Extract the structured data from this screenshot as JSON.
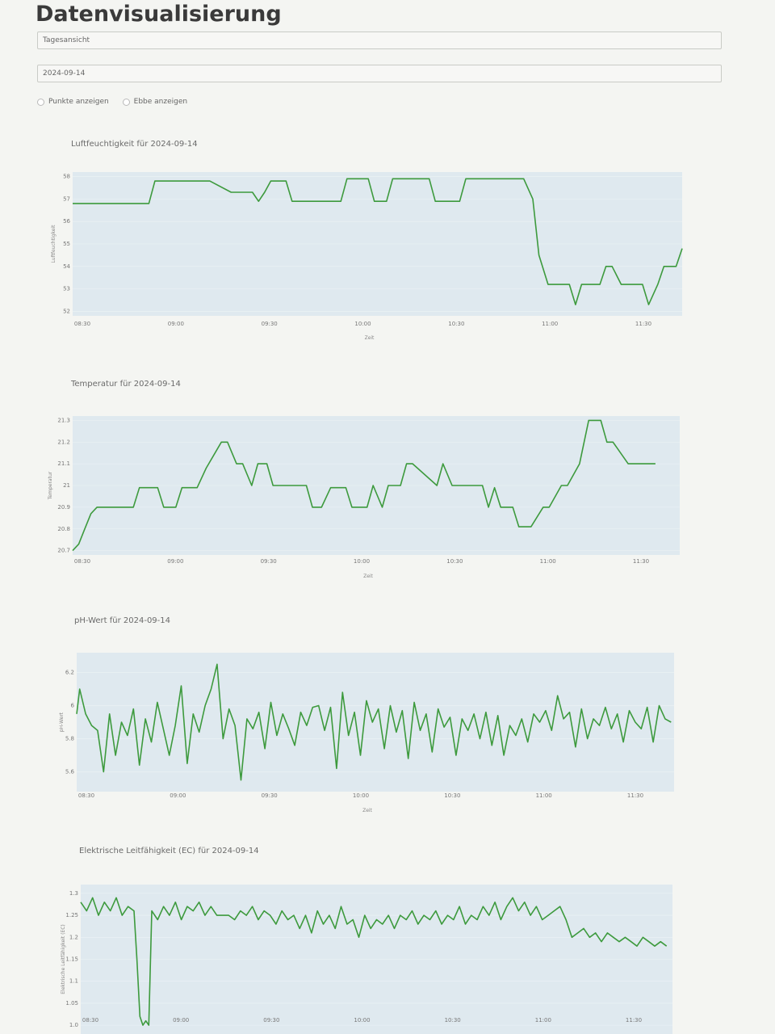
{
  "page": {
    "title": "Datenvisualisierung",
    "view_select": "Tagesansicht",
    "date_select": "2024-09-14",
    "checkbox_points": "Punkte anzeigen",
    "checkbox_ebb": "Ebbe anzeigen"
  },
  "colors": {
    "line": "#3d9a3d",
    "plot_bg": "#dfe9ef",
    "page_bg": "#f4f5f2"
  },
  "chart_data": [
    {
      "type": "line",
      "title": "Luftfeuchtigkeit für 2024-09-14",
      "xlabel": "Zeit",
      "ylabel": "Luftfeuchtigkeit",
      "x_ticks": [
        "08:30",
        "09:00",
        "09:30",
        "10:00",
        "10:30",
        "11:00",
        "11:30"
      ],
      "y_ticks": [
        "52",
        "53",
        "54",
        "55",
        "56",
        "57",
        "58"
      ],
      "xlim": [
        0,
        200
      ],
      "ylim": [
        51.8,
        58.2
      ],
      "x": [
        0,
        25,
        27,
        45,
        52,
        54,
        59,
        61,
        63,
        65,
        70,
        72,
        88,
        90,
        97,
        99,
        103,
        105,
        117,
        119,
        127,
        129,
        148,
        151,
        153,
        156,
        163,
        165,
        167,
        173,
        175,
        177,
        180,
        187,
        189,
        192,
        194,
        198,
        200
      ],
      "y": [
        56.8,
        56.8,
        57.8,
        57.8,
        57.3,
        57.3,
        57.3,
        56.9,
        57.3,
        57.8,
        57.8,
        56.9,
        56.9,
        57.9,
        57.9,
        56.9,
        56.9,
        57.9,
        57.9,
        56.9,
        56.9,
        57.9,
        57.9,
        57.0,
        54.5,
        53.2,
        53.2,
        52.3,
        53.2,
        53.2,
        54.0,
        54.0,
        53.2,
        53.2,
        52.3,
        53.2,
        54.0,
        54.0,
        54.8
      ]
    },
    {
      "type": "line",
      "title": "Temperatur für 2024-09-14",
      "xlabel": "Zeit",
      "ylabel": "Temperatur",
      "x_ticks": [
        "08:30",
        "09:00",
        "09:30",
        "10:00",
        "10:30",
        "11:00",
        "11:30"
      ],
      "y_ticks": [
        "20.7",
        "20.8",
        "20.9",
        "21",
        "21.1",
        "21.2",
        "21.3"
      ],
      "xlim": [
        0,
        200
      ],
      "ylim": [
        20.68,
        21.32
      ],
      "x": [
        0,
        2,
        4,
        6,
        8,
        20,
        22,
        28,
        30,
        34,
        36,
        41,
        44,
        49,
        51,
        54,
        56,
        59,
        61,
        64,
        66,
        77,
        79,
        82,
        85,
        90,
        92,
        97,
        99,
        102,
        104,
        108,
        110,
        112,
        120,
        122,
        125,
        129,
        135,
        137,
        139,
        141,
        145,
        147,
        151,
        155,
        157,
        161,
        163,
        167,
        170,
        174,
        176,
        178,
        183,
        185,
        187,
        190,
        192
      ],
      "y": [
        20.7,
        20.73,
        20.8,
        20.87,
        20.9,
        20.9,
        20.99,
        20.99,
        20.9,
        20.9,
        20.99,
        20.99,
        21.08,
        21.2,
        21.2,
        21.1,
        21.1,
        21.0,
        21.1,
        21.1,
        21.0,
        21.0,
        20.9,
        20.9,
        20.99,
        20.99,
        20.9,
        20.9,
        21.0,
        20.9,
        21.0,
        21.0,
        21.1,
        21.1,
        21.0,
        21.1,
        21.0,
        21.0,
        21.0,
        20.9,
        20.99,
        20.9,
        20.9,
        20.81,
        20.81,
        20.9,
        20.9,
        21.0,
        21.0,
        21.1,
        21.3,
        21.3,
        21.2,
        21.2,
        21.1,
        21.1,
        21.1,
        21.1,
        21.1
      ]
    },
    {
      "type": "line",
      "title": "pH-Wert für 2024-09-14",
      "xlabel": "Zeit",
      "ylabel": "pH-Wert",
      "x_ticks": [
        "08:30",
        "09:00",
        "09:30",
        "10:00",
        "10:30",
        "11:00",
        "11:30"
      ],
      "y_ticks": [
        "5.6",
        "5.8",
        "6",
        "6.2"
      ],
      "xlim": [
        0,
        200
      ],
      "ylim": [
        5.48,
        6.32
      ],
      "x": [
        0,
        1,
        3,
        5,
        7,
        9,
        11,
        13,
        15,
        17,
        19,
        21,
        23,
        25,
        27,
        29,
        31,
        33,
        35,
        37,
        39,
        41,
        43,
        45,
        47,
        49,
        51,
        53,
        55,
        57,
        59,
        61,
        63,
        65,
        67,
        69,
        71,
        73,
        75,
        77,
        79,
        81,
        83,
        85,
        87,
        89,
        91,
        93,
        95,
        97,
        99,
        101,
        103,
        105,
        107,
        109,
        111,
        113,
        115,
        117,
        119,
        121,
        123,
        125,
        127,
        129,
        131,
        133,
        135,
        137,
        139,
        141,
        143,
        145,
        147,
        149,
        151,
        153,
        155,
        157,
        159,
        161,
        163,
        165,
        167,
        169,
        171,
        173,
        175,
        177,
        179,
        181,
        183,
        185,
        187,
        189,
        191,
        193,
        195,
        197,
        199
      ],
      "y": [
        5.95,
        6.1,
        5.95,
        5.88,
        5.85,
        5.6,
        5.95,
        5.7,
        5.9,
        5.82,
        5.98,
        5.64,
        5.92,
        5.78,
        6.02,
        5.86,
        5.7,
        5.88,
        6.12,
        5.65,
        5.95,
        5.84,
        6.0,
        6.1,
        6.25,
        5.8,
        5.98,
        5.88,
        5.55,
        5.92,
        5.86,
        5.96,
        5.74,
        6.02,
        5.82,
        5.95,
        5.86,
        5.76,
        5.96,
        5.88,
        5.99,
        6.0,
        5.85,
        5.99,
        5.62,
        6.08,
        5.82,
        5.96,
        5.7,
        6.03,
        5.9,
        5.98,
        5.74,
        6.0,
        5.84,
        5.97,
        5.68,
        6.02,
        5.85,
        5.95,
        5.72,
        5.98,
        5.87,
        5.93,
        5.7,
        5.92,
        5.85,
        5.95,
        5.8,
        5.96,
        5.76,
        5.94,
        5.7,
        5.88,
        5.82,
        5.92,
        5.78,
        5.95,
        5.9,
        5.97,
        5.85,
        6.06,
        5.92,
        5.96,
        5.75,
        5.98,
        5.8,
        5.92,
        5.88,
        5.99,
        5.86,
        5.95,
        5.78,
        5.97,
        5.9,
        5.86,
        5.99,
        5.78,
        6.0,
        5.92,
        5.9
      ]
    },
    {
      "type": "line",
      "title": "Elektrische Leitfähigkeit (EC) für 2024-09-14",
      "xlabel": "",
      "ylabel": "Elektrische Leitfähigkeit (EC)",
      "x_ticks": [
        "08:30",
        "09:00",
        "09:30",
        "10:00",
        "10:30",
        "11:00",
        "11:30"
      ],
      "y_ticks": [
        "1.0",
        "1.05",
        "1.1",
        "1.15",
        "1.2",
        "1.25",
        "1.3"
      ],
      "xlim": [
        0,
        200
      ],
      "ylim": [
        0.98,
        1.32
      ],
      "x": [
        0,
        2,
        4,
        6,
        8,
        10,
        12,
        14,
        16,
        18,
        19,
        20,
        21,
        22,
        23,
        24,
        26,
        28,
        30,
        32,
        34,
        36,
        38,
        40,
        42,
        44,
        46,
        48,
        50,
        52,
        54,
        56,
        58,
        60,
        62,
        64,
        66,
        68,
        70,
        72,
        74,
        76,
        78,
        80,
        82,
        84,
        86,
        88,
        90,
        92,
        94,
        96,
        98,
        100,
        102,
        104,
        106,
        108,
        110,
        112,
        114,
        116,
        118,
        120,
        122,
        124,
        126,
        128,
        130,
        132,
        134,
        136,
        138,
        140,
        142,
        144,
        146,
        148,
        150,
        152,
        154,
        156,
        158,
        160,
        162,
        164,
        166,
        168,
        170,
        172,
        174,
        176,
        178,
        180,
        182,
        184,
        186,
        188,
        190,
        192,
        194,
        196,
        198
      ],
      "y": [
        1.28,
        1.26,
        1.29,
        1.25,
        1.28,
        1.26,
        1.29,
        1.25,
        1.27,
        1.26,
        1.15,
        1.02,
        1.0,
        1.01,
        1.0,
        1.26,
        1.24,
        1.27,
        1.25,
        1.28,
        1.24,
        1.27,
        1.26,
        1.28,
        1.25,
        1.27,
        1.25,
        1.25,
        1.25,
        1.24,
        1.26,
        1.25,
        1.27,
        1.24,
        1.26,
        1.25,
        1.23,
        1.26,
        1.24,
        1.25,
        1.22,
        1.25,
        1.21,
        1.26,
        1.23,
        1.25,
        1.22,
        1.27,
        1.23,
        1.24,
        1.2,
        1.25,
        1.22,
        1.24,
        1.23,
        1.25,
        1.22,
        1.25,
        1.24,
        1.26,
        1.23,
        1.25,
        1.24,
        1.26,
        1.23,
        1.25,
        1.24,
        1.27,
        1.23,
        1.25,
        1.24,
        1.27,
        1.25,
        1.28,
        1.24,
        1.27,
        1.29,
        1.26,
        1.28,
        1.25,
        1.27,
        1.24,
        1.25,
        1.26,
        1.27,
        1.24,
        1.2,
        1.21,
        1.22,
        1.2,
        1.21,
        1.19,
        1.21,
        1.2,
        1.19,
        1.2,
        1.19,
        1.18,
        1.2,
        1.19,
        1.18,
        1.19,
        1.18
      ]
    }
  ]
}
